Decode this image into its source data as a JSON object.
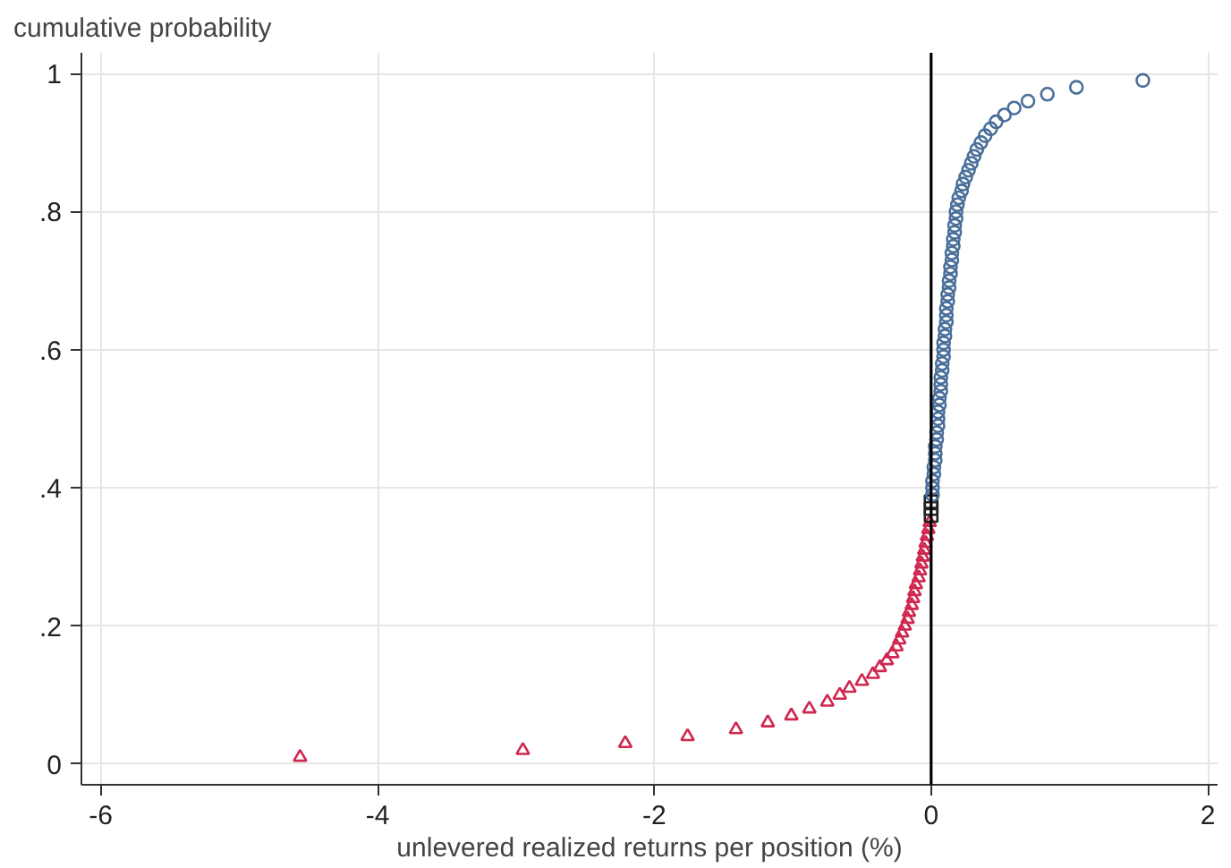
{
  "chart_data": {
    "type": "scatter",
    "ylabel": "cumulative probability",
    "xlabel": "unlevered realized returns per position (%)",
    "xlim": [
      -6.14,
      2.07
    ],
    "ylim": [
      -0.03,
      1.03
    ],
    "xticks": [
      -6,
      -4,
      -2,
      0,
      2
    ],
    "yticks": [
      0,
      {
        "value": 0.2,
        "label": ".2"
      },
      {
        "value": 0.4,
        "label": ".4"
      },
      {
        "value": 0.6,
        "label": ".6"
      },
      {
        "value": 0.8,
        "label": ".8"
      },
      1
    ],
    "grid": true,
    "ref_lines": [
      {
        "axis": "x",
        "value": 0,
        "color": "#000000",
        "line_style": "solid"
      }
    ],
    "series": [
      {
        "color": "#d0264f",
        "marker": "triangle",
        "x": [
          -4.56,
          -2.95,
          -2.21,
          -1.76,
          -1.41,
          -1.18,
          -1.01,
          -0.88,
          -0.75,
          -0.66,
          -0.59,
          -0.5,
          -0.42,
          -0.37,
          -0.32,
          -0.28,
          -0.25,
          -0.23,
          -0.21,
          -0.19,
          -0.17,
          -0.16,
          -0.14,
          -0.13,
          -0.12,
          -0.11,
          -0.09,
          -0.08,
          -0.07,
          -0.06,
          -0.05,
          -0.04,
          -0.03,
          -0.02,
          -0.01
        ],
        "values": [
          0.01,
          0.02,
          0.03,
          0.04,
          0.05,
          0.06,
          0.07,
          0.08,
          0.09,
          0.1,
          0.11,
          0.12,
          0.13,
          0.14,
          0.15,
          0.16,
          0.17,
          0.18,
          0.19,
          0.2,
          0.21,
          0.22,
          0.23,
          0.24,
          0.25,
          0.26,
          0.27,
          0.28,
          0.29,
          0.3,
          0.31,
          0.32,
          0.33,
          0.34,
          0.35
        ]
      },
      {
        "color": "#222222",
        "marker": "square",
        "x": [
          0,
          0,
          0
        ],
        "values": [
          0.36,
          0.37,
          0.38
        ]
      },
      {
        "color": "#4a6f9a",
        "marker": "circle",
        "x": [
          0.01,
          0.01,
          0.01,
          0.02,
          0.02,
          0.03,
          0.03,
          0.03,
          0.04,
          0.04,
          0.05,
          0.05,
          0.05,
          0.06,
          0.06,
          0.07,
          0.07,
          0.07,
          0.08,
          0.08,
          0.09,
          0.09,
          0.09,
          0.1,
          0.1,
          0.11,
          0.11,
          0.11,
          0.12,
          0.12,
          0.13,
          0.13,
          0.14,
          0.14,
          0.15,
          0.15,
          0.16,
          0.16,
          0.17,
          0.17,
          0.18,
          0.18,
          0.19,
          0.2,
          0.22,
          0.23,
          0.25,
          0.27,
          0.29,
          0.31,
          0.33,
          0.36,
          0.39,
          0.43,
          0.47,
          0.53,
          0.6,
          0.7,
          0.84,
          1.05,
          1.53
        ],
        "values": [
          0.39,
          0.4,
          0.41,
          0.42,
          0.43,
          0.44,
          0.45,
          0.46,
          0.47,
          0.48,
          0.49,
          0.5,
          0.51,
          0.52,
          0.53,
          0.54,
          0.55,
          0.56,
          0.57,
          0.58,
          0.59,
          0.6,
          0.61,
          0.62,
          0.63,
          0.64,
          0.65,
          0.66,
          0.67,
          0.68,
          0.69,
          0.7,
          0.71,
          0.72,
          0.73,
          0.74,
          0.75,
          0.76,
          0.77,
          0.78,
          0.79,
          0.8,
          0.81,
          0.82,
          0.83,
          0.84,
          0.85,
          0.86,
          0.87,
          0.88,
          0.89,
          0.9,
          0.91,
          0.92,
          0.93,
          0.94,
          0.95,
          0.96,
          0.97,
          0.98,
          0.99
        ]
      }
    ]
  }
}
